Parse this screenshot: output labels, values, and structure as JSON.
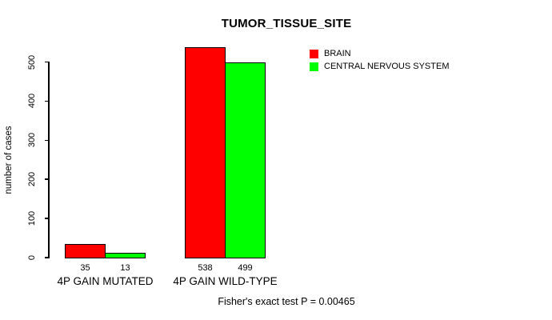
{
  "chart_data": {
    "type": "bar",
    "title": "TUMOR_TISSUE_SITE",
    "ylabel": "number of cases",
    "xlabel": "",
    "categories": [
      "4P GAIN MUTATED",
      "4P GAIN WILD-TYPE"
    ],
    "series": [
      {
        "name": "BRAIN",
        "color": "#ff0000",
        "values": [
          35,
          538
        ]
      },
      {
        "name": "CENTRAL NERVOUS SYSTEM",
        "color": "#00ff00",
        "values": [
          13,
          499
        ]
      }
    ],
    "ylim": [
      0,
      500
    ],
    "yticks": [
      0,
      100,
      200,
      300,
      400,
      500
    ],
    "bar_value_labels": [
      [
        "35",
        "538"
      ],
      [
        "13",
        "499"
      ]
    ],
    "legend_position": "top-right",
    "grid": "off",
    "footnote": "Fisher's exact test P = 0.00465",
    "colors": {
      "background": "#ffffff",
      "axis": "#000000",
      "text": "#000000"
    }
  }
}
